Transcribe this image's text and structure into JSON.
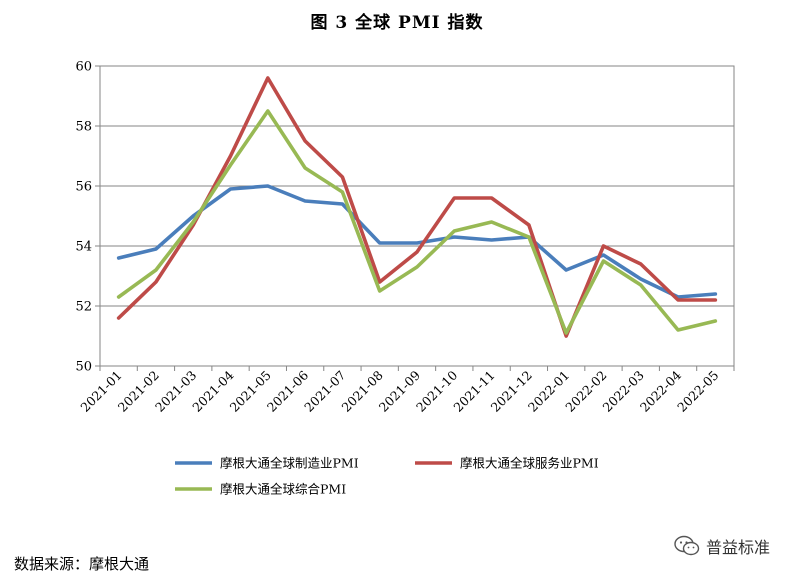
{
  "title": "图 3  全球 PMI 指数",
  "source": "数据来源：摩根大通",
  "watermark": "普益标准",
  "chart_data": {
    "type": "line",
    "title": "图 3  全球 PMI 指数",
    "categories": [
      "2021-01",
      "2021-02",
      "2021-03",
      "2021-04",
      "2021-05",
      "2021-06",
      "2021-07",
      "2021-08",
      "2021-09",
      "2021-10",
      "2021-11",
      "2021-12",
      "2022-01",
      "2022-02",
      "2022-03",
      "2022-04",
      "2022-05"
    ],
    "ylim": [
      50,
      60
    ],
    "yticks": [
      50,
      52,
      54,
      56,
      58,
      60
    ],
    "grid": true,
    "legend_position": "bottom",
    "series": [
      {
        "name": "摩根大通全球制造业PMI",
        "color": "#4a7ebb",
        "values": [
          53.6,
          53.9,
          55.0,
          55.9,
          56.0,
          55.5,
          55.4,
          54.1,
          54.1,
          54.3,
          54.2,
          54.3,
          53.2,
          53.7,
          52.9,
          52.3,
          52.4
        ]
      },
      {
        "name": "摩根大通全球服务业PMI",
        "color": "#be4b48",
        "values": [
          51.6,
          52.8,
          54.7,
          57.0,
          59.6,
          57.5,
          56.3,
          52.8,
          53.8,
          55.6,
          55.6,
          54.7,
          51.0,
          54.0,
          53.4,
          52.2,
          52.2
        ]
      },
      {
        "name": "摩根大通全球综合PMI",
        "color": "#98b954",
        "values": [
          52.3,
          53.2,
          54.8,
          56.7,
          58.5,
          56.6,
          55.8,
          52.5,
          53.3,
          54.5,
          54.8,
          54.3,
          51.1,
          53.5,
          52.7,
          51.2,
          51.5
        ]
      }
    ]
  }
}
